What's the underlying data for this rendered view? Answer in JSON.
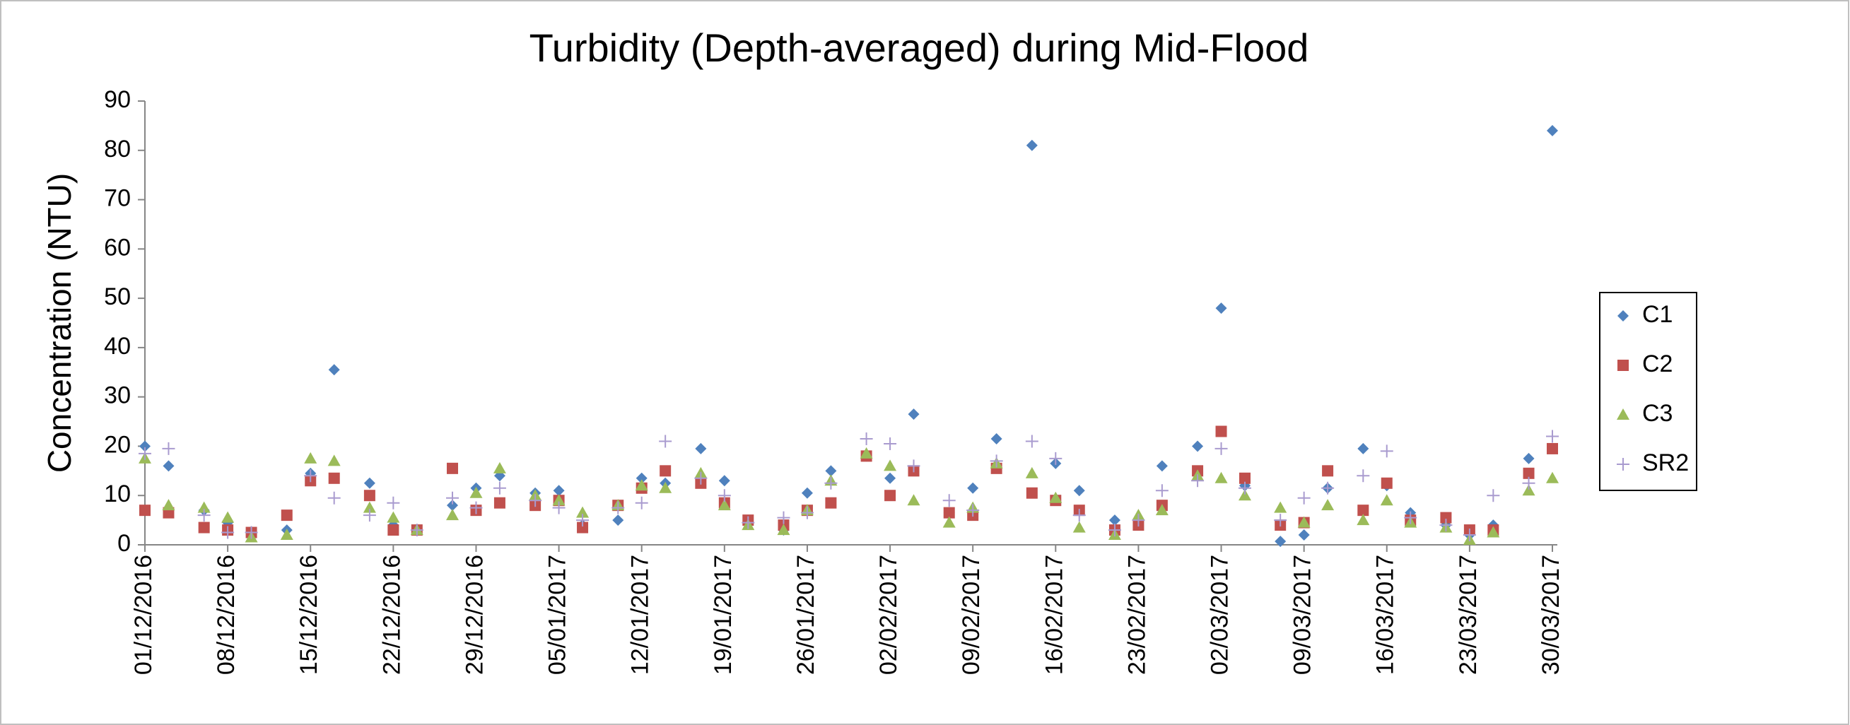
{
  "chart_data": {
    "type": "scatter",
    "title": "Turbidity (Depth-averaged) during Mid-Flood",
    "y_label": "Concentration (NTU)",
    "x": [
      "2016-12-01",
      "2016-12-03",
      "2016-12-06",
      "2016-12-08",
      "2016-12-10",
      "2016-12-13",
      "2016-12-15",
      "2016-12-17",
      "2016-12-20",
      "2016-12-22",
      "2016-12-24",
      "2016-12-27",
      "2016-12-29",
      "2016-12-31",
      "2017-01-03",
      "2017-01-05",
      "2017-01-07",
      "2017-01-10",
      "2017-01-12",
      "2017-01-14",
      "2017-01-17",
      "2017-01-19",
      "2017-01-21",
      "2017-01-24",
      "2017-01-26",
      "2017-01-28",
      "2017-01-31",
      "2017-02-02",
      "2017-02-04",
      "2017-02-07",
      "2017-02-09",
      "2017-02-11",
      "2017-02-14",
      "2017-02-16",
      "2017-02-18",
      "2017-02-21",
      "2017-02-23",
      "2017-02-25",
      "2017-02-28",
      "2017-03-02",
      "2017-03-04",
      "2017-03-07",
      "2017-03-09",
      "2017-03-11",
      "2017-03-14",
      "2017-03-16",
      "2017-03-18",
      "2017-03-21",
      "2017-03-23",
      "2017-03-25",
      "2017-03-28",
      "2017-03-30"
    ],
    "series": [
      {
        "name": "C1",
        "color": "#4f81bd",
        "marker": "diamond",
        "values": [
          20,
          16,
          7,
          4.5,
          2,
          3,
          14.5,
          35.5,
          12.5,
          4,
          3,
          8,
          11.5,
          14,
          10.5,
          11,
          4,
          5,
          13.5,
          12.5,
          19.5,
          13,
          4.5,
          3,
          10.5,
          15,
          18,
          13.5,
          26.5,
          6.5,
          11.5,
          21.5,
          81,
          16.5,
          11,
          5,
          4.5,
          16,
          20,
          48,
          12,
          0.7,
          2,
          11.5,
          19.5,
          12,
          6.5,
          4,
          2,
          4,
          17.5,
          84
        ]
      },
      {
        "name": "C2",
        "color": "#c0504d",
        "marker": "square",
        "values": [
          7,
          6.5,
          3.5,
          3,
          2.5,
          6,
          13,
          13.5,
          10,
          3,
          3,
          15.5,
          7,
          8.5,
          8,
          9,
          3.5,
          8,
          11.5,
          15,
          12.5,
          8.5,
          5,
          4,
          7,
          8.5,
          18,
          10,
          15,
          6.5,
          6,
          15.5,
          10.5,
          9,
          7,
          3,
          4,
          8,
          15,
          23,
          13.5,
          4,
          4.5,
          15,
          7,
          12.5,
          5,
          5.5,
          3,
          3,
          14.5,
          19.5
        ]
      },
      {
        "name": "C3",
        "color": "#9bbb59",
        "marker": "triangle",
        "values": [
          17.5,
          8,
          7.5,
          5.5,
          1.5,
          2,
          17.5,
          17,
          7.5,
          5.5,
          3,
          6,
          10.5,
          15.5,
          10,
          9,
          6.5,
          8,
          12,
          11.5,
          14.5,
          8,
          4,
          3,
          7,
          13,
          18.5,
          16,
          9,
          4.5,
          7.5,
          16.5,
          14.5,
          9.5,
          3.5,
          2,
          6,
          7,
          14,
          13.5,
          10,
          7.5,
          4.5,
          8,
          5,
          9,
          4.5,
          3.5,
          1,
          2.5,
          11,
          13.5
        ]
      },
      {
        "name": "SR2",
        "color": "#a99bcf",
        "marker": "plus",
        "values": [
          18.5,
          19.5,
          6,
          2.5,
          2.5,
          null,
          14,
          9.5,
          6,
          8.5,
          3,
          9.5,
          7.5,
          11.5,
          9,
          7.5,
          5,
          7.5,
          8.5,
          21,
          13.5,
          10,
          4.5,
          5.5,
          6.5,
          12.5,
          21.5,
          20.5,
          16,
          9,
          7,
          17,
          21,
          17.5,
          6,
          3,
          5,
          11,
          13,
          19.5,
          11.5,
          5,
          9.5,
          11.5,
          14,
          19,
          5.5,
          4,
          2,
          10,
          12.5,
          22
        ]
      }
    ],
    "xlim": [
      "2016-12-01",
      "2017-03-30"
    ],
    "xticks": [
      {
        "value": "2016-12-01",
        "label": "01/12/2016"
      },
      {
        "value": "2016-12-08",
        "label": "08/12/2016"
      },
      {
        "value": "2016-12-15",
        "label": "15/12/2016"
      },
      {
        "value": "2016-12-22",
        "label": "22/12/2016"
      },
      {
        "value": "2016-12-29",
        "label": "29/12/2016"
      },
      {
        "value": "2017-01-05",
        "label": "05/01/2017"
      },
      {
        "value": "2017-01-12",
        "label": "12/01/2017"
      },
      {
        "value": "2017-01-19",
        "label": "19/01/2017"
      },
      {
        "value": "2017-01-26",
        "label": "26/01/2017"
      },
      {
        "value": "2017-02-02",
        "label": "02/02/2017"
      },
      {
        "value": "2017-02-09",
        "label": "09/02/2017"
      },
      {
        "value": "2017-02-16",
        "label": "16/02/2017"
      },
      {
        "value": "2017-02-23",
        "label": "23/02/2017"
      },
      {
        "value": "2017-03-02",
        "label": "02/03/2017"
      },
      {
        "value": "2017-03-09",
        "label": "09/03/2017"
      },
      {
        "value": "2017-03-16",
        "label": "16/03/2017"
      },
      {
        "value": "2017-03-23",
        "label": "23/03/2017"
      },
      {
        "value": "2017-03-30",
        "label": "30/03/2017"
      }
    ],
    "ylim": [
      0,
      90
    ],
    "yticks": [
      0,
      10,
      20,
      30,
      40,
      50,
      60,
      70,
      80,
      90
    ],
    "grid": false,
    "legend": "right"
  }
}
